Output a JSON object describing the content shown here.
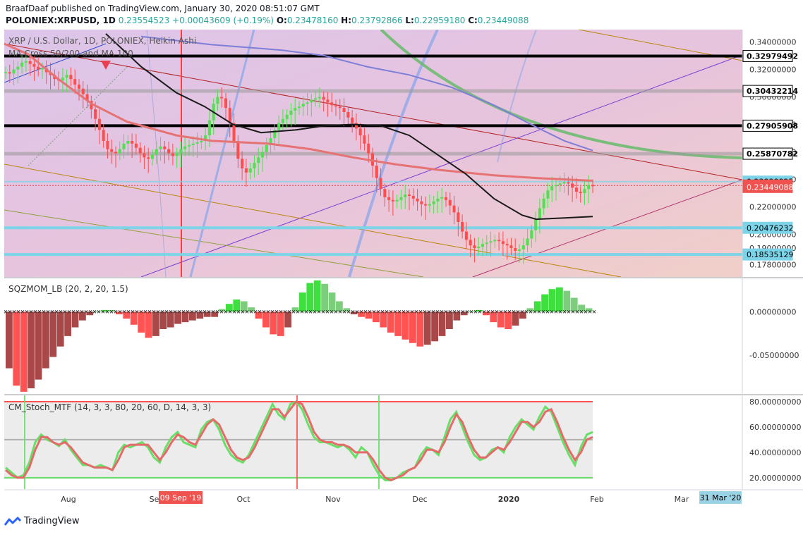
{
  "header": {
    "line1": "BraafDaaf published on TradingView.com, January 30, 2020 08:51:07 GMT",
    "symbol": "POLONIEX:XRPUSD, 1D",
    "last": "0.23554523",
    "change": "+0.00043609 (+0.19%)",
    "o_label": "O:",
    "o": "0.23478160",
    "h_label": "H:",
    "h": "0.23792866",
    "l_label": "L:",
    "l": "0.22959180",
    "c_label": "C:",
    "c": "0.23449088"
  },
  "overlay_legend": {
    "line1": "XRP / U.S. Dollar, 1D, POLONIEX, Heikin Ashi",
    "line2": "MA Cross 50/200 and MA 100"
  },
  "footer": {
    "brand": "TradingView"
  },
  "colors": {
    "up": "#4ee24e",
    "down": "#ff4d4d",
    "ma_red": "#e57373",
    "ma_black": "#1a1a1a",
    "ma_blue": "#7e7ed8",
    "arc_green": "#66bb6a",
    "arc_blue": "#90a8e8",
    "stoch_green": "#66e066",
    "stoch_red": "#e56b6b",
    "cyan": "#7dd3e8",
    "purple": "#7b3fd1"
  },
  "chart_data": [
    {
      "type": "candlestick",
      "title": "XRP / U.S. Dollar, 1D, POLONIEX, Heikin Ashi",
      "subtitle": "MA Cross 50/200 and MA 100",
      "x_ticks": [
        "Aug",
        "Sep",
        "Oct",
        "Nov",
        "Dec",
        "2020",
        "Feb",
        "Mar"
      ],
      "x_date_marker": "09 Sep '19",
      "x_end_marker": "31 Mar '20",
      "ylim": [
        0.169,
        0.349
      ],
      "y_ticks": [
        "0.34000000",
        "0.32000000",
        "0.30000000",
        "0.28000000",
        "0.26000000",
        "0.24000000",
        "0.22000000",
        "0.20000000",
        "0.19000000",
        "0.17800000"
      ],
      "levels": [
        {
          "value": 0.32979492,
          "label": "0.32979492",
          "style": "black"
        },
        {
          "value": 0.30432214,
          "label": "0.30432214",
          "style": "grey"
        },
        {
          "value": 0.27905908,
          "label": "0.27905908",
          "style": "black"
        },
        {
          "value": 0.25870782,
          "label": "0.25870782",
          "style": "grey"
        },
        {
          "value": 0.23838825,
          "label": "0.23838825",
          "style": "cyan"
        },
        {
          "value": 0.23554523,
          "label": "0.23554523",
          "style": "last"
        },
        {
          "value": 0.23449088,
          "label": "0.23449088",
          "style": "close"
        },
        {
          "value": 0.20476232,
          "label": "0.20476232",
          "style": "cyan"
        },
        {
          "value": 0.18535129,
          "label": "0.18535129",
          "style": "cyan"
        }
      ],
      "price_series": [
        0.318,
        0.317,
        0.32,
        0.322,
        0.325,
        0.326,
        0.324,
        0.322,
        0.32,
        0.321,
        0.318,
        0.316,
        0.313,
        0.312,
        0.314,
        0.316,
        0.313,
        0.309,
        0.306,
        0.302,
        0.297,
        0.291,
        0.284,
        0.276,
        0.268,
        0.262,
        0.26,
        0.259,
        0.262,
        0.266,
        0.268,
        0.266,
        0.263,
        0.259,
        0.256,
        0.255,
        0.258,
        0.262,
        0.264,
        0.262,
        0.259,
        0.257,
        0.259,
        0.262,
        0.264,
        0.265,
        0.266,
        0.267,
        0.268,
        0.272,
        0.283,
        0.295,
        0.3,
        0.299,
        0.292,
        0.281,
        0.268,
        0.255,
        0.248,
        0.245,
        0.248,
        0.252,
        0.256,
        0.26,
        0.265,
        0.27,
        0.276,
        0.281,
        0.284,
        0.287,
        0.29,
        0.292,
        0.293,
        0.295,
        0.296,
        0.298,
        0.299,
        0.3,
        0.298,
        0.296,
        0.294,
        0.293,
        0.292,
        0.289,
        0.285,
        0.281,
        0.277,
        0.272,
        0.266,
        0.259,
        0.25,
        0.241,
        0.233,
        0.227,
        0.225,
        0.224,
        0.225,
        0.227,
        0.229,
        0.228,
        0.226,
        0.224,
        0.222,
        0.221,
        0.222,
        0.224,
        0.226,
        0.227,
        0.225,
        0.221,
        0.216,
        0.209,
        0.202,
        0.196,
        0.192,
        0.19,
        0.191,
        0.193,
        0.194,
        0.195,
        0.196,
        0.195,
        0.193,
        0.192,
        0.19,
        0.188,
        0.189,
        0.192,
        0.197,
        0.203,
        0.211,
        0.219,
        0.226,
        0.232,
        0.235,
        0.236,
        0.237,
        0.238,
        0.237,
        0.234,
        0.231,
        0.23,
        0.233,
        0.236,
        0.235
      ],
      "ma_red": [
        [
          0,
          0.34
        ],
        [
          40,
          0.331
        ],
        [
          80,
          0.314
        ],
        [
          130,
          0.295
        ],
        [
          180,
          0.282
        ],
        [
          250,
          0.272
        ],
        [
          300,
          0.268
        ],
        [
          380,
          0.266
        ],
        [
          440,
          0.262
        ],
        [
          500,
          0.256
        ],
        [
          560,
          0.251
        ],
        [
          620,
          0.247
        ],
        [
          700,
          0.243
        ],
        [
          760,
          0.241
        ],
        [
          840,
          0.239
        ]
      ],
      "ma_black": [
        [
          150,
          0.346
        ],
        [
          200,
          0.322
        ],
        [
          250,
          0.303
        ],
        [
          290,
          0.293
        ],
        [
          330,
          0.28
        ],
        [
          370,
          0.274
        ],
        [
          420,
          0.276
        ],
        [
          460,
          0.279
        ],
        [
          500,
          0.28
        ],
        [
          540,
          0.279
        ],
        [
          580,
          0.272
        ],
        [
          620,
          0.258
        ],
        [
          660,
          0.244
        ],
        [
          700,
          0.226
        ],
        [
          740,
          0.214
        ],
        [
          760,
          0.211
        ],
        [
          800,
          0.212
        ],
        [
          840,
          0.213
        ]
      ],
      "ma_blue": [
        [
          200,
          0.344
        ],
        [
          300,
          0.338
        ],
        [
          400,
          0.334
        ],
        [
          460,
          0.33
        ],
        [
          520,
          0.322
        ],
        [
          580,
          0.316
        ],
        [
          640,
          0.307
        ],
        [
          700,
          0.294
        ],
        [
          760,
          0.278
        ],
        [
          800,
          0.268
        ],
        [
          840,
          0.261
        ]
      ]
    },
    {
      "type": "bar",
      "title": "SQZMOM_LB (20, 2, 20, 1.5)",
      "ylim": [
        -0.0945,
        0.0375
      ],
      "y_ticks": [
        "0.00000000",
        "-0.05000000"
      ],
      "values": [
        -0.065,
        -0.085,
        -0.092,
        -0.088,
        -0.078,
        -0.065,
        -0.052,
        -0.04,
        -0.028,
        -0.018,
        -0.01,
        -0.004,
        0.001,
        0.002,
        0.002,
        -0.003,
        -0.008,
        -0.015,
        -0.024,
        -0.03,
        -0.028,
        -0.02,
        -0.018,
        -0.014,
        -0.012,
        -0.01,
        -0.008,
        -0.006,
        -0.006,
        0.003,
        0.009,
        0.014,
        0.012,
        0.005,
        -0.008,
        -0.018,
        -0.026,
        -0.028,
        -0.018,
        0.005,
        0.022,
        0.033,
        0.036,
        0.032,
        0.022,
        0.012,
        0.004,
        -0.003,
        -0.006,
        -0.008,
        -0.012,
        -0.018,
        -0.024,
        -0.028,
        -0.032,
        -0.036,
        -0.04,
        -0.038,
        -0.034,
        -0.028,
        -0.02,
        -0.01,
        -0.004,
        0.001,
        0.002,
        -0.004,
        -0.012,
        -0.018,
        -0.02,
        -0.016,
        -0.008,
        0.004,
        0.012,
        0.02,
        0.026,
        0.028,
        0.024,
        0.016,
        0.008,
        0.004
      ]
    },
    {
      "type": "line",
      "title": "CM_Stoch_MTF (14, 3, 3, 80, 20, 60, D, 14, 3, 3)",
      "ylim": [
        11,
        85
      ],
      "y_ticks": [
        "80.00000000",
        "60.00000000",
        "40.00000000",
        "20.00000000"
      ],
      "levels": [
        80,
        50,
        20
      ],
      "series": [
        {
          "values": [
            28,
            24,
            20,
            22,
            32,
            48,
            54,
            50,
            48,
            45,
            50,
            42,
            36,
            30,
            30,
            28,
            30,
            28,
            26,
            40,
            46,
            44,
            46,
            48,
            44,
            36,
            32,
            44,
            52,
            56,
            48,
            46,
            44,
            58,
            64,
            66,
            58,
            46,
            38,
            34,
            32,
            38,
            48,
            58,
            68,
            78,
            70,
            66,
            78,
            80,
            74,
            62,
            52,
            48,
            48,
            46,
            44,
            46,
            42,
            36,
            44,
            40,
            30,
            22,
            18,
            18,
            20,
            24,
            26,
            28,
            38,
            44,
            42,
            38,
            52,
            66,
            72,
            60,
            48,
            38,
            34,
            36,
            42,
            44,
            40,
            52,
            60,
            66,
            62,
            58,
            68,
            76,
            72,
            60,
            48,
            38,
            30,
            44,
            54,
            56
          ]
        },
        {
          "values": [
            26,
            22,
            20,
            20,
            28,
            42,
            52,
            52,
            48,
            46,
            48,
            44,
            38,
            32,
            30,
            28,
            28,
            28,
            26,
            34,
            44,
            46,
            46,
            46,
            46,
            40,
            34,
            40,
            48,
            54,
            52,
            48,
            46,
            54,
            62,
            66,
            62,
            52,
            42,
            36,
            34,
            36,
            44,
            54,
            64,
            74,
            74,
            68,
            74,
            80,
            78,
            68,
            56,
            50,
            48,
            48,
            46,
            46,
            44,
            40,
            40,
            40,
            34,
            26,
            20,
            18,
            20,
            22,
            26,
            28,
            34,
            42,
            42,
            40,
            48,
            60,
            70,
            64,
            52,
            42,
            36,
            36,
            40,
            44,
            42,
            48,
            56,
            64,
            64,
            60,
            64,
            72,
            74,
            64,
            52,
            42,
            34,
            40,
            50,
            52
          ]
        }
      ]
    }
  ]
}
